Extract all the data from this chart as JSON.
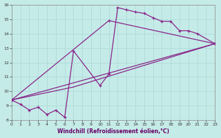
{
  "bg_color": "#c5ebe8",
  "grid_color": "#a8d8d5",
  "line_color": "#882288",
  "xlabel": "Windchill (Refroidissement éolien,°C)",
  "xlim": [
    0,
    23
  ],
  "ylim": [
    8,
    16
  ],
  "xticks": [
    0,
    1,
    2,
    3,
    4,
    5,
    6,
    7,
    8,
    9,
    10,
    11,
    12,
    13,
    14,
    15,
    16,
    17,
    18,
    19,
    20,
    21,
    22,
    23
  ],
  "yticks": [
    8,
    9,
    10,
    11,
    12,
    13,
    14,
    15,
    16
  ],
  "line1": {
    "x": [
      0,
      1,
      2,
      3,
      4,
      5,
      6,
      7,
      10,
      11,
      12,
      13,
      14,
      15,
      16,
      17,
      18,
      19,
      20,
      21,
      23
    ],
    "y": [
      9.4,
      9.1,
      8.7,
      8.9,
      8.4,
      8.7,
      8.2,
      12.8,
      10.4,
      11.2,
      15.8,
      15.65,
      15.5,
      15.4,
      15.1,
      14.85,
      14.85,
      14.2,
      14.2,
      14.0,
      13.3
    ],
    "has_markers": true
  },
  "line2": {
    "x": [
      0,
      11,
      23
    ],
    "y": [
      9.4,
      14.9,
      13.3
    ],
    "has_markers": true
  },
  "line3": {
    "x": [
      0,
      7,
      23
    ],
    "y": [
      9.4,
      10.3,
      13.3
    ],
    "has_markers": false
  },
  "line4": {
    "x": [
      0,
      23
    ],
    "y": [
      9.4,
      13.3
    ],
    "has_markers": false
  }
}
